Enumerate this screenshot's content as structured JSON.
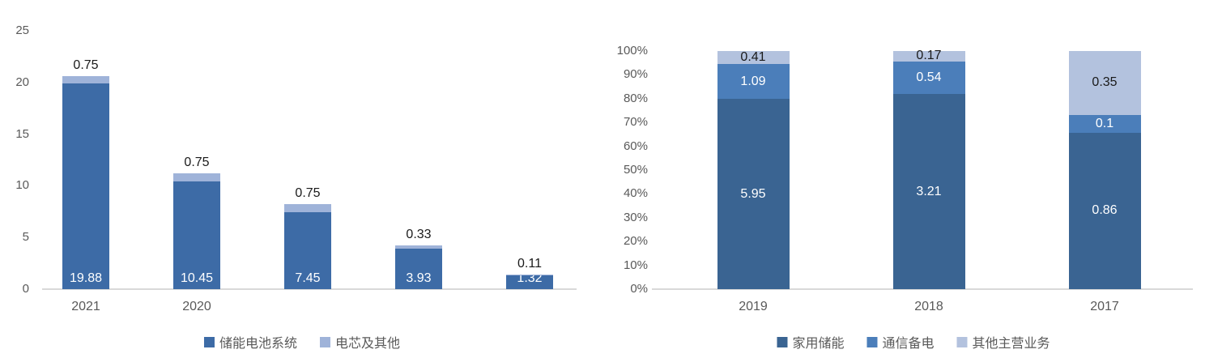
{
  "figure": {
    "background": "#ffffff"
  },
  "chart_data": [
    {
      "type": "bar",
      "subtype": "stacked",
      "title": "",
      "xlabel": "",
      "ylabel": "",
      "categories": [
        "2021",
        "2020",
        "",
        "",
        ""
      ],
      "series": [
        {
          "name": "储能电池系统",
          "color": "#3D6BA6",
          "label_color": "#ffffff",
          "label_position": "inside-base",
          "values": [
            19.88,
            10.45,
            7.45,
            3.93,
            1.32
          ]
        },
        {
          "name": "电芯及其他",
          "color": "#9FB3D9",
          "label_color": "#1a1a1a",
          "label_position": "outside-end",
          "values": [
            0.75,
            0.75,
            0.75,
            0.33,
            0.11
          ]
        }
      ],
      "y_axis": {
        "min": 0,
        "max": 25,
        "tick_values": [
          25,
          20,
          15,
          10,
          5,
          0
        ],
        "tick_labels": [
          "25",
          "20",
          "15",
          "10",
          "5",
          "0"
        ]
      },
      "grid": false,
      "legend_position": "bottom",
      "axis_line_color": "#d9d9d9",
      "tick_label_color": "#595959"
    },
    {
      "type": "bar",
      "subtype": "percent-stacked",
      "title": "",
      "xlabel": "",
      "ylabel": "",
      "categories": [
        "2019",
        "2018",
        "2017"
      ],
      "series": [
        {
          "name": "家用储能",
          "color": "#3A6492",
          "label_color": "#ffffff",
          "label_position": "center",
          "values": [
            5.95,
            3.21,
            0.86
          ]
        },
        {
          "name": "通信备电",
          "color": "#4B7EBA",
          "label_color": "#ffffff",
          "label_position": "center",
          "values": [
            1.09,
            0.54,
            0.1
          ]
        },
        {
          "name": "其他主营业务",
          "color": "#B3C2DE",
          "label_color": "#1a1a1a",
          "label_position": "center",
          "values": [
            0.41,
            0.17,
            0.35
          ]
        }
      ],
      "y_axis": {
        "min": 0,
        "max": 100,
        "tick_values": [
          100,
          90,
          80,
          70,
          60,
          50,
          40,
          30,
          20,
          10,
          0
        ],
        "tick_labels": [
          "100%",
          "90%",
          "80%",
          "70%",
          "60%",
          "50%",
          "40%",
          "30%",
          "20%",
          "10%",
          "0%"
        ]
      },
      "grid": false,
      "legend_position": "bottom",
      "axis_line_color": "#d9d9d9",
      "tick_label_color": "#595959"
    }
  ]
}
